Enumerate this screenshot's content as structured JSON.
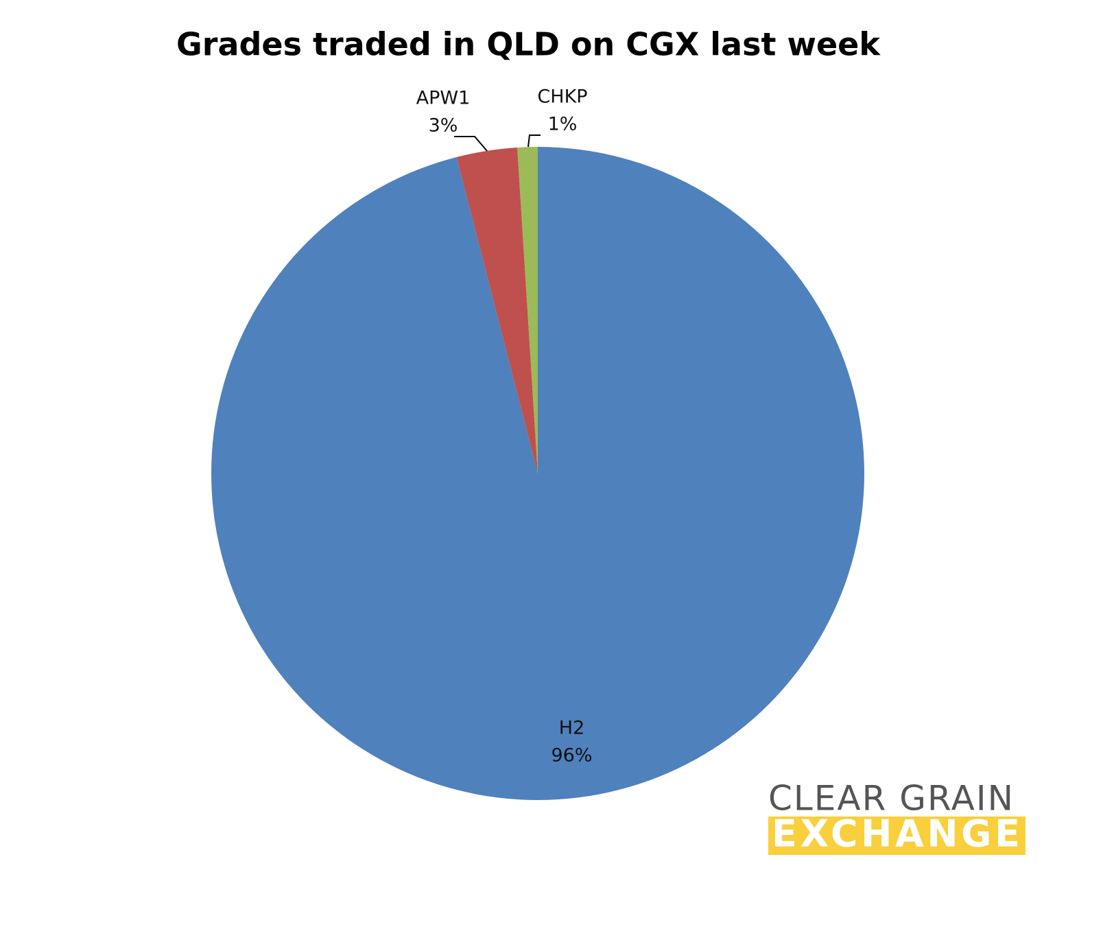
{
  "chart_data": {
    "type": "pie",
    "title": "Grades traded in QLD on CGX last week",
    "categories": [
      "H2",
      "APW1",
      "CHKP"
    ],
    "values": [
      96,
      3,
      1
    ],
    "value_labels": [
      "96%",
      "3%",
      "1%"
    ],
    "colors": [
      "#4f81bd",
      "#c0504d",
      "#9bbb59"
    ]
  },
  "logo": {
    "line1": "CLEAR GRAIN",
    "line2": "EXCHANGE"
  }
}
